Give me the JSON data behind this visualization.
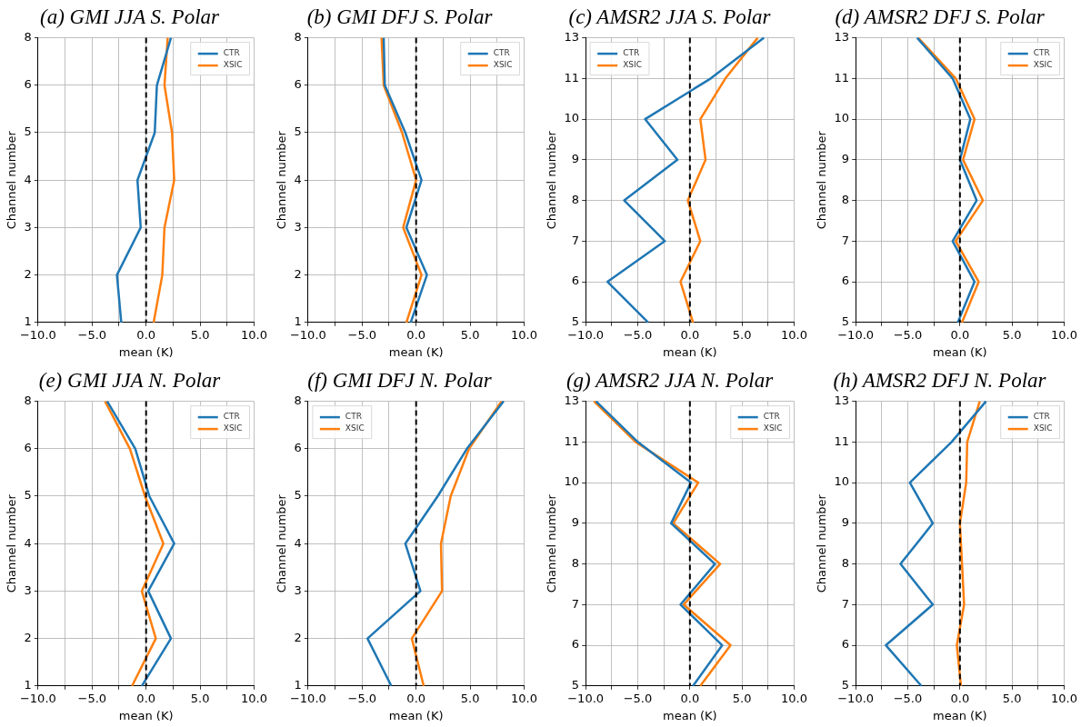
{
  "chart_data": [
    {
      "type": "line",
      "orientation": "horizontal",
      "title": "(a) GMI JJA S. Polar",
      "xlabel": "mean (K)",
      "ylabel": "Channel number",
      "categories": [
        "8",
        "6",
        "5",
        "4",
        "3",
        "2",
        "1"
      ],
      "series": [
        {
          "name": "CTR",
          "color": "#1f77b4",
          "values": [
            2.3,
            1.0,
            0.8,
            -0.8,
            -0.5,
            -2.7,
            -2.3
          ]
        },
        {
          "name": "XSIC",
          "color": "#ff7f0e",
          "values": [
            2.0,
            1.7,
            2.4,
            2.6,
            1.7,
            1.5,
            0.7
          ]
        }
      ],
      "xlim": [
        -10,
        10
      ],
      "xticks": [
        {
          "value": -10,
          "label": "−10.0"
        },
        {
          "value": -7.5,
          "label": null
        },
        {
          "value": -5,
          "label": "−5.0"
        },
        {
          "value": -2.5,
          "label": null
        },
        {
          "value": 0,
          "label": "0.0"
        },
        {
          "value": 2.5,
          "label": null
        },
        {
          "value": 5,
          "label": "5.0"
        },
        {
          "value": 7.5,
          "label": null
        },
        {
          "value": 10,
          "label": "10.0"
        }
      ],
      "ref_lines": [
        {
          "axis": "x",
          "value": 0,
          "color": "#000000",
          "line_style": "dashed"
        }
      ],
      "grid": true,
      "legend": "top right"
    },
    {
      "type": "line",
      "orientation": "horizontal",
      "title": "(b) GMI DFJ S. Polar",
      "xlabel": "mean (K)",
      "ylabel": "Channel number",
      "categories": [
        "8",
        "6",
        "5",
        "4",
        "3",
        "2",
        "1"
      ],
      "series": [
        {
          "name": "CTR",
          "color": "#1f77b4",
          "values": [
            -3.0,
            -2.9,
            -1.0,
            0.5,
            -0.9,
            1.0,
            -0.5
          ]
        },
        {
          "name": "XSIC",
          "color": "#ff7f0e",
          "values": [
            -3.2,
            -3.0,
            -1.3,
            0.0,
            -1.2,
            0.5,
            -0.9
          ]
        }
      ],
      "xlim": [
        -10,
        10
      ],
      "xticks": [
        {
          "value": -10,
          "label": "−10.0"
        },
        {
          "value": -7.5,
          "label": null
        },
        {
          "value": -5,
          "label": "−5.0"
        },
        {
          "value": -2.5,
          "label": null
        },
        {
          "value": 0,
          "label": "0.0"
        },
        {
          "value": 2.5,
          "label": null
        },
        {
          "value": 5,
          "label": "5.0"
        },
        {
          "value": 7.5,
          "label": null
        },
        {
          "value": 10,
          "label": "10.0"
        }
      ],
      "ref_lines": [
        {
          "axis": "x",
          "value": 0,
          "color": "#000000",
          "line_style": "dashed"
        }
      ],
      "grid": true,
      "legend": "top right"
    },
    {
      "type": "line",
      "orientation": "horizontal",
      "title": "(c) AMSR2 JJA S. Polar",
      "xlabel": "mean (K)",
      "ylabel": "Channel number",
      "categories": [
        "13",
        "11",
        "10",
        "9",
        "8",
        "7",
        "6",
        "5"
      ],
      "series": [
        {
          "name": "CTR",
          "color": "#1f77b4",
          "values": [
            7.1,
            2.0,
            -4.3,
            -1.2,
            -6.3,
            -2.4,
            -7.9,
            -4.0
          ]
        },
        {
          "name": "XSIC",
          "color": "#ff7f0e",
          "values": [
            6.5,
            3.4,
            1.0,
            1.5,
            -0.2,
            1.0,
            -0.9,
            0.3
          ]
        }
      ],
      "xlim": [
        -10,
        10
      ],
      "xticks": [
        {
          "value": -10,
          "label": "−10.0"
        },
        {
          "value": -7.5,
          "label": null
        },
        {
          "value": -5,
          "label": "−5.0"
        },
        {
          "value": -2.5,
          "label": null
        },
        {
          "value": 0,
          "label": "0.0"
        },
        {
          "value": 2.5,
          "label": null
        },
        {
          "value": 5,
          "label": "5.0"
        },
        {
          "value": 7.5,
          "label": null
        },
        {
          "value": 10,
          "label": "10.0"
        }
      ],
      "ref_lines": [
        {
          "axis": "x",
          "value": 0,
          "color": "#000000",
          "line_style": "dashed"
        }
      ],
      "grid": true,
      "legend": "top left"
    },
    {
      "type": "line",
      "orientation": "horizontal",
      "title": "(d) AMSR2 DFJ S. Polar",
      "xlabel": "mean (K)",
      "ylabel": "Channel number",
      "categories": [
        "13",
        "11",
        "10",
        "9",
        "8",
        "7",
        "6",
        "5"
      ],
      "series": [
        {
          "name": "CTR",
          "color": "#1f77b4",
          "values": [
            -4.1,
            -0.7,
            1.0,
            0.0,
            1.6,
            -0.7,
            1.4,
            -0.2
          ]
        },
        {
          "name": "XSIC",
          "color": "#ff7f0e",
          "values": [
            -4.0,
            -0.4,
            1.4,
            0.3,
            2.2,
            -0.4,
            1.8,
            0.2
          ]
        }
      ],
      "xlim": [
        -10,
        10
      ],
      "xticks": [
        {
          "value": -10,
          "label": "−10.0"
        },
        {
          "value": -7.5,
          "label": null
        },
        {
          "value": -5,
          "label": "−5.0"
        },
        {
          "value": -2.5,
          "label": null
        },
        {
          "value": 0,
          "label": "0.0"
        },
        {
          "value": 2.5,
          "label": null
        },
        {
          "value": 5,
          "label": "5.0"
        },
        {
          "value": 7.5,
          "label": null
        },
        {
          "value": 10,
          "label": "10.0"
        }
      ],
      "ref_lines": [
        {
          "axis": "x",
          "value": 0,
          "color": "#000000",
          "line_style": "dashed"
        }
      ],
      "grid": true,
      "legend": "top right"
    },
    {
      "type": "line",
      "orientation": "horizontal",
      "title": "(e) GMI JJA N. Polar",
      "xlabel": "mean (K)",
      "ylabel": "Channel number",
      "categories": [
        "8",
        "6",
        "5",
        "4",
        "3",
        "2",
        "1"
      ],
      "series": [
        {
          "name": "CTR",
          "color": "#1f77b4",
          "values": [
            -3.6,
            -1.0,
            0.3,
            2.6,
            0.2,
            2.3,
            -0.4
          ]
        },
        {
          "name": "XSIC",
          "color": "#ff7f0e",
          "values": [
            -3.8,
            -1.5,
            -0.1,
            1.6,
            -0.4,
            0.9,
            -1.3
          ]
        }
      ],
      "xlim": [
        -10,
        10
      ],
      "xticks": [
        {
          "value": -10,
          "label": "−10.0"
        },
        {
          "value": -7.5,
          "label": null
        },
        {
          "value": -5,
          "label": "−5.0"
        },
        {
          "value": -2.5,
          "label": null
        },
        {
          "value": 0,
          "label": "0.0"
        },
        {
          "value": 2.5,
          "label": null
        },
        {
          "value": 5,
          "label": "5.0"
        },
        {
          "value": 7.5,
          "label": null
        },
        {
          "value": 10,
          "label": "10.0"
        }
      ],
      "ref_lines": [
        {
          "axis": "x",
          "value": 0,
          "color": "#000000",
          "line_style": "dashed"
        }
      ],
      "grid": true,
      "legend": "top right"
    },
    {
      "type": "line",
      "orientation": "horizontal",
      "title": "(f) GMI DFJ N. Polar",
      "xlabel": "mean (K)",
      "ylabel": "Channel number",
      "categories": [
        "8",
        "6",
        "5",
        "4",
        "3",
        "2",
        "1"
      ],
      "series": [
        {
          "name": "CTR",
          "color": "#1f77b4",
          "values": [
            8.1,
            4.7,
            2.0,
            -1.0,
            0.4,
            -4.5,
            -2.3
          ]
        },
        {
          "name": "XSIC",
          "color": "#ff7f0e",
          "values": [
            7.9,
            4.9,
            3.2,
            2.3,
            2.4,
            -0.4,
            0.7
          ]
        }
      ],
      "xlim": [
        -10,
        10
      ],
      "xticks": [
        {
          "value": -10,
          "label": "−10.0"
        },
        {
          "value": -7.5,
          "label": null
        },
        {
          "value": -5,
          "label": "−5.0"
        },
        {
          "value": -2.5,
          "label": null
        },
        {
          "value": 0,
          "label": "0.0"
        },
        {
          "value": 2.5,
          "label": null
        },
        {
          "value": 5,
          "label": "5.0"
        },
        {
          "value": 7.5,
          "label": null
        },
        {
          "value": 10,
          "label": "10.0"
        }
      ],
      "ref_lines": [
        {
          "axis": "x",
          "value": 0,
          "color": "#000000",
          "line_style": "dashed"
        }
      ],
      "grid": true,
      "legend": "top left"
    },
    {
      "type": "line",
      "orientation": "horizontal",
      "title": "(g) AMSR2 JJA N. Polar",
      "xlabel": "mean (K)",
      "ylabel": "Channel number",
      "categories": [
        "13",
        "11",
        "10",
        "9",
        "8",
        "7",
        "6",
        "5"
      ],
      "series": [
        {
          "name": "CTR",
          "color": "#1f77b4",
          "values": [
            -9.0,
            -5.0,
            0.1,
            -1.8,
            2.4,
            -0.9,
            3.1,
            0.3
          ]
        },
        {
          "name": "XSIC",
          "color": "#ff7f0e",
          "values": [
            -9.2,
            -5.2,
            0.8,
            -1.6,
            2.9,
            -0.6,
            3.9,
            1.0
          ]
        }
      ],
      "xlim": [
        -10,
        10
      ],
      "xticks": [
        {
          "value": -10,
          "label": "−10.0"
        },
        {
          "value": -7.5,
          "label": null
        },
        {
          "value": -5,
          "label": "−5.0"
        },
        {
          "value": -2.5,
          "label": null
        },
        {
          "value": 0,
          "label": "0.0"
        },
        {
          "value": 2.5,
          "label": null
        },
        {
          "value": 5,
          "label": "5.0"
        },
        {
          "value": 7.5,
          "label": null
        },
        {
          "value": 10,
          "label": "10.0"
        }
      ],
      "ref_lines": [
        {
          "axis": "x",
          "value": 0,
          "color": "#000000",
          "line_style": "dashed"
        }
      ],
      "grid": true,
      "legend": "top right"
    },
    {
      "type": "line",
      "orientation": "horizontal",
      "title": "(h) AMSR2 DFJ N. Polar",
      "xlabel": "mean (K)",
      "ylabel": "Channel number",
      "categories": [
        "13",
        "11",
        "10",
        "9",
        "8",
        "7",
        "6",
        "5"
      ],
      "series": [
        {
          "name": "CTR",
          "color": "#1f77b4",
          "values": [
            2.5,
            -0.8,
            -4.8,
            -2.6,
            -5.7,
            -2.6,
            -7.1,
            -3.7
          ]
        },
        {
          "name": "XSIC",
          "color": "#ff7f0e",
          "values": [
            1.9,
            0.7,
            0.6,
            0.0,
            0.2,
            0.4,
            -0.3,
            0.1
          ]
        }
      ],
      "xlim": [
        -10,
        10
      ],
      "xticks": [
        {
          "value": -10,
          "label": "−10.0"
        },
        {
          "value": -7.5,
          "label": null
        },
        {
          "value": -5,
          "label": "−5.0"
        },
        {
          "value": -2.5,
          "label": null
        },
        {
          "value": 0,
          "label": "0.0"
        },
        {
          "value": 2.5,
          "label": null
        },
        {
          "value": 5,
          "label": "5.0"
        },
        {
          "value": 7.5,
          "label": null
        },
        {
          "value": 10,
          "label": "10.0"
        }
      ],
      "ref_lines": [
        {
          "axis": "x",
          "value": 0,
          "color": "#000000",
          "line_style": "dashed"
        }
      ],
      "grid": true,
      "legend": "top right"
    }
  ]
}
